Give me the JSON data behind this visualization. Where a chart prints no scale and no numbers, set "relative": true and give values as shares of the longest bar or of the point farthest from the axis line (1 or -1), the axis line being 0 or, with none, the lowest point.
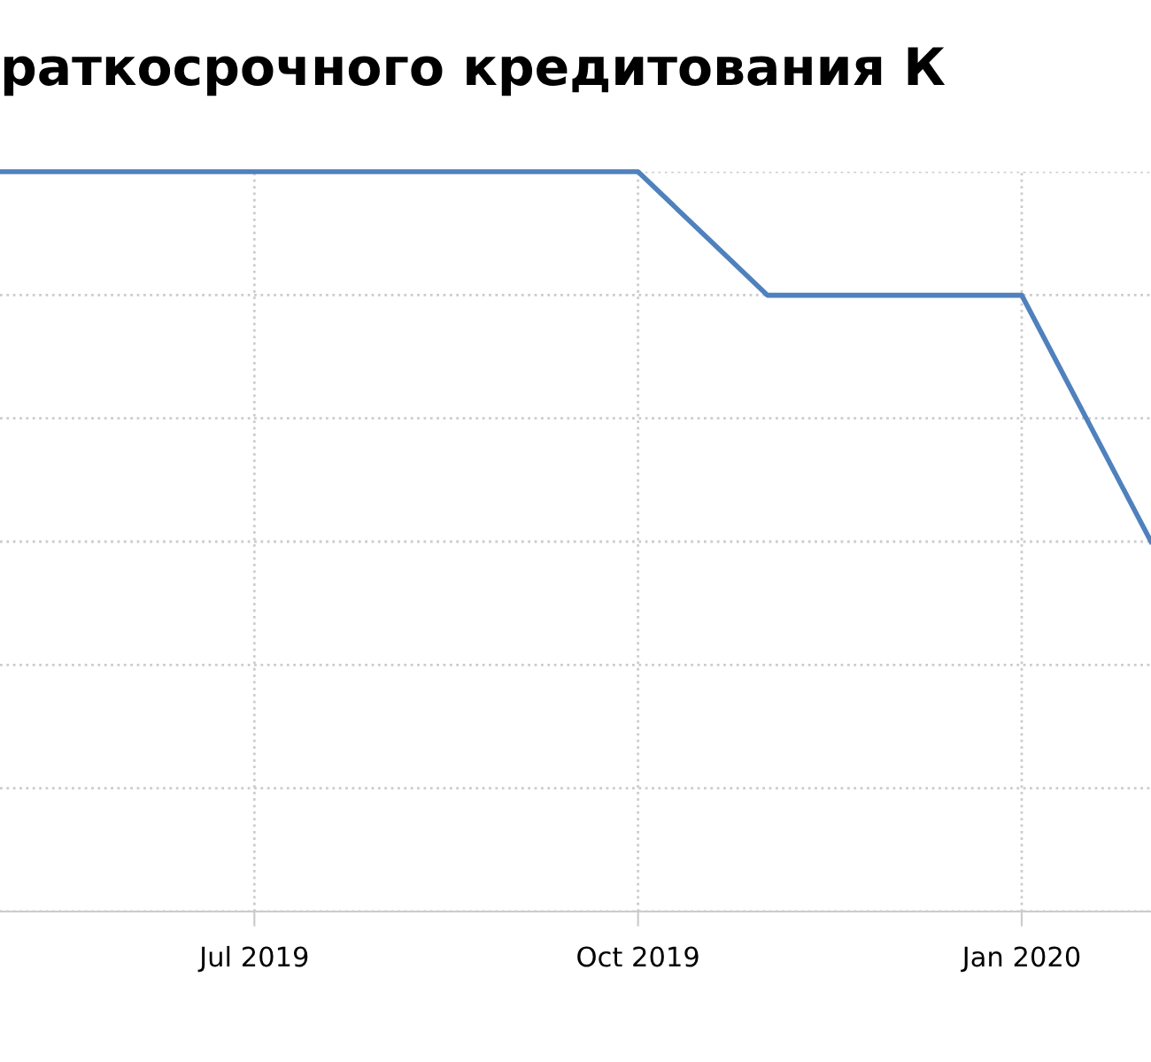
{
  "chart_data": {
    "type": "line",
    "title": "раткосрочного кредитования К",
    "x": [
      "2019-05-01",
      "2019-06-01",
      "2019-07-01",
      "2019-08-01",
      "2019-09-01",
      "2019-10-01",
      "2019-11-01",
      "2019-12-01",
      "2020-01-01",
      "2020-02-01"
    ],
    "series": [
      {
        "color": "#4f81bd",
        "values": [
          1,
          1,
          1,
          1,
          1,
          1,
          0.833,
          0.833,
          0.833,
          0.5
        ]
      }
    ],
    "relative": true,
    "xlim": [
      "2019-05-01",
      "2020-02-01"
    ],
    "xticks": [
      {
        "value": "2019-07-01",
        "label": "Jul 2019"
      },
      {
        "value": "2019-10-01",
        "label": "Oct 2019"
      },
      {
        "value": "2020-01-01",
        "label": "Jan 2020"
      }
    ],
    "tick_labels": "x",
    "grid": true,
    "legend": false,
    "marker": "none",
    "line_style": "solid"
  }
}
